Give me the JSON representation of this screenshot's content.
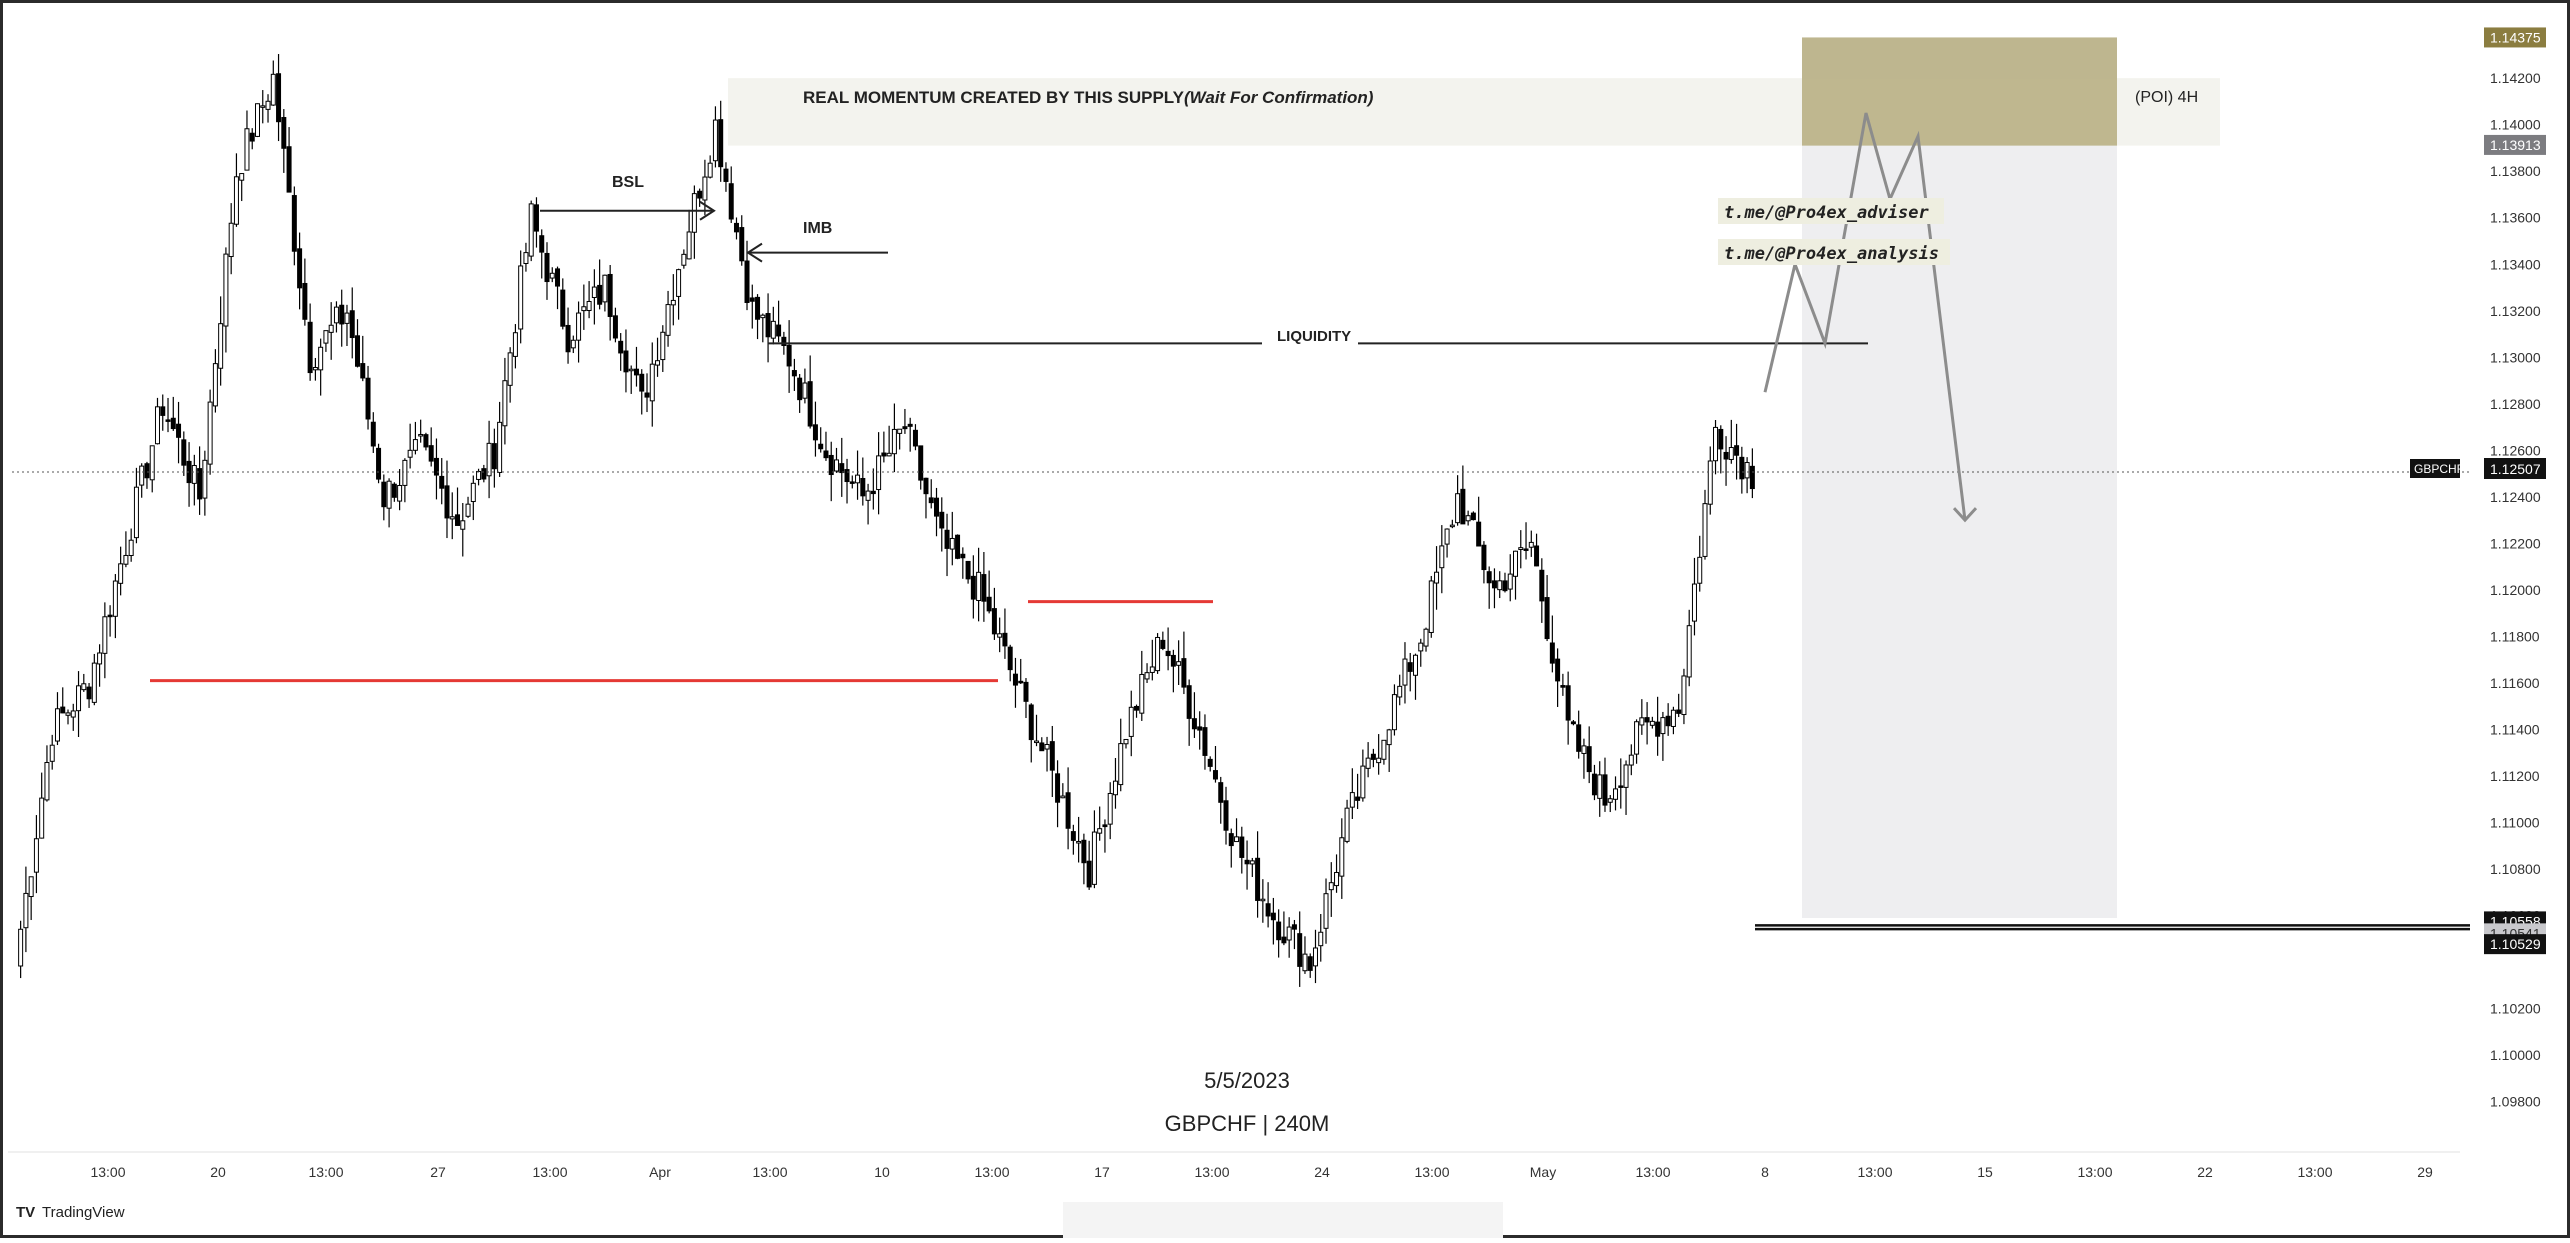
{
  "chart_data": {
    "type": "candlestick",
    "symbol": "GBPCHF",
    "interval_label": "GBPCHF | 240M",
    "date_label": "5/5/2023",
    "branding": "TradingView",
    "ylim": [
      1.097,
      1.1445
    ],
    "current_price": "1.12507",
    "y_ticks": [
      "1.14200",
      "1.14000",
      "1.13800",
      "1.13600",
      "1.13400",
      "1.13200",
      "1.13000",
      "1.12800",
      "1.12600",
      "1.12400",
      "1.12200",
      "1.12000",
      "1.11800",
      "1.11600",
      "1.11400",
      "1.11200",
      "1.11000",
      "1.10800",
      "1.10600",
      "1.10200",
      "1.10000",
      "1.09800"
    ],
    "x_ticks": [
      "13:00",
      "20",
      "13:00",
      "27",
      "13:00",
      "Apr",
      "13:00",
      "10",
      "13:00",
      "17",
      "13:00",
      "24",
      "13:00",
      "May",
      "13:00",
      "8",
      "13:00",
      "15",
      "13:00",
      "22",
      "13:00",
      "29"
    ],
    "price_badges": [
      {
        "label": "1.14375",
        "value": 1.14375,
        "kind": "olive"
      },
      {
        "label": "1.13913",
        "value": 1.13913,
        "kind": "grey"
      },
      {
        "label": "1.10558",
        "value": 1.10558,
        "kind": "dark"
      },
      {
        "label": "1.10541",
        "value": 1.10541,
        "kind": "light"
      },
      {
        "label": "1.10529",
        "value": 1.10529,
        "kind": "dark"
      }
    ],
    "close_path": [
      [
        1.104,
        1.114
      ],
      [
        1.114,
        1.116
      ],
      [
        1.116,
        1.122
      ],
      [
        1.122,
        1.128
      ],
      [
        1.128,
        1.124
      ],
      [
        1.124,
        1.138
      ],
      [
        1.138,
        1.142
      ],
      [
        1.142,
        1.13
      ],
      [
        1.13,
        1.132
      ],
      [
        1.132,
        1.124
      ],
      [
        1.124,
        1.126
      ],
      [
        1.126,
        1.123
      ],
      [
        1.123,
        1.126
      ],
      [
        1.126,
        1.136
      ],
      [
        1.136,
        1.131
      ],
      [
        1.131,
        1.133
      ],
      [
        1.133,
        1.128
      ],
      [
        1.128,
        1.134
      ],
      [
        1.134,
        1.14
      ],
      [
        1.14,
        1.132
      ],
      [
        1.132,
        1.13
      ],
      [
        1.13,
        1.126
      ],
      [
        1.126,
        1.124
      ],
      [
        1.124,
        1.127
      ],
      [
        1.127,
        1.122
      ],
      [
        1.122,
        1.12
      ],
      [
        1.12,
        1.116
      ],
      [
        1.116,
        1.112
      ],
      [
        1.112,
        1.108
      ],
      [
        1.108,
        1.114
      ],
      [
        1.114,
        1.118
      ],
      [
        1.118,
        1.114
      ],
      [
        1.114,
        1.109
      ],
      [
        1.109,
        1.106
      ],
      [
        1.106,
        1.104
      ],
      [
        1.104,
        1.11
      ],
      [
        1.11,
        1.114
      ],
      [
        1.114,
        1.118
      ],
      [
        1.118,
        1.124
      ],
      [
        1.124,
        1.12
      ],
      [
        1.12,
        1.122
      ],
      [
        1.122,
        1.114
      ],
      [
        1.114,
        1.111
      ],
      [
        1.111,
        1.114
      ],
      [
        1.114,
        1.115
      ],
      [
        1.115,
        1.127
      ],
      [
        1.127,
        1.125
      ]
    ],
    "annotations": {
      "supply_label": "REAL MOMENTUM CREATED BY THIS SUPPLY",
      "supply_label_italic": "(Wait For Confirmation)",
      "poi_label": "(POI) 4H",
      "bsl_label": "BSL",
      "imb_label": "IMB",
      "liquidity_label": "LIQUIDITY",
      "telegram_1": "t.me/@Pro4ex_adviser",
      "telegram_2": "t.me/@Pro4ex_analysis"
    },
    "levels": {
      "supply_zone": [
        1.1391,
        1.142
      ],
      "poi_box": [
        1.1391,
        1.14375
      ],
      "liquidity": 1.1306,
      "bsl": 1.1363,
      "imb": 1.1345,
      "red_line_1": 1.1161,
      "red_line_2": 1.1195,
      "support_double": [
        1.10558,
        1.10529
      ]
    },
    "projection_path": [
      1.1285,
      1.134,
      1.1306,
      1.1405,
      1.1368,
      1.1395,
      1.123
    ]
  },
  "colors": {
    "candle": "#000000",
    "red_line": "#e53935",
    "poi_box": "#b5ac7e",
    "zone_fill": "#f3f3ee",
    "grey_box": "#eeeef0",
    "projection": "#8c8c8c"
  }
}
